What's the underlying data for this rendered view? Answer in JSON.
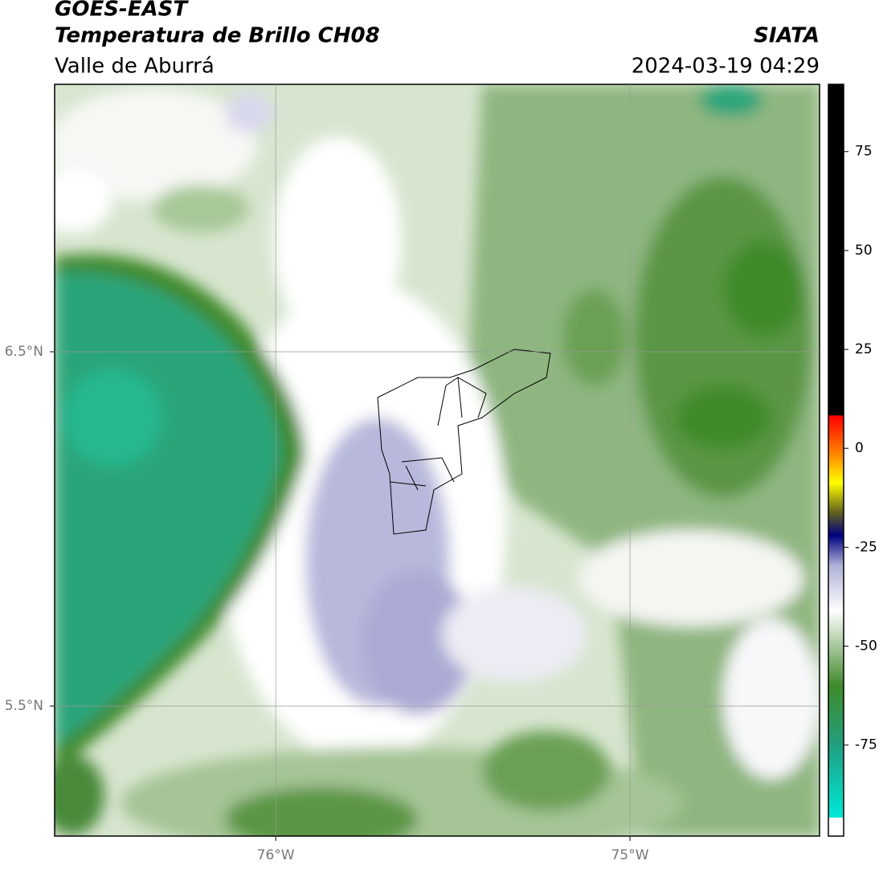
{
  "header": {
    "title": "GOES-EAST",
    "subtitle": "Temperatura de Brillo CH08",
    "source": "SIATA",
    "region": "Valle de Aburrá",
    "datetime": "2024-03-19 04:29"
  },
  "map": {
    "lonlim": [
      -76.624,
      -74.465
    ],
    "latlim": [
      5.133,
      7.255
    ],
    "lon_ticks": [
      {
        "value": -76,
        "label": "76°W"
      },
      {
        "value": -75,
        "label": "75°W"
      }
    ],
    "lat_ticks": [
      {
        "value": 6.5,
        "label": "6.5°N"
      },
      {
        "value": 5.5,
        "label": "5.5°N"
      }
    ],
    "grid": true
  },
  "colorbar": {
    "lim": [
      -98,
      92
    ],
    "ticks": [
      75,
      50,
      25,
      0,
      -25,
      -50,
      -75
    ]
  }
}
